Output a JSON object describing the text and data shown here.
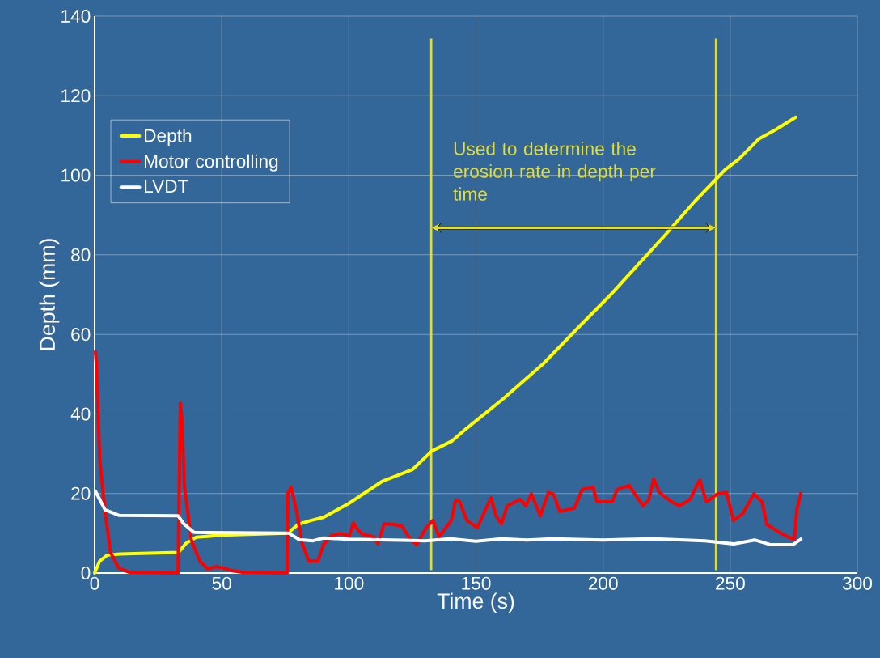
{
  "chart_data": {
    "type": "line",
    "xlabel": "Time (s)",
    "ylabel": "Depth (mm)",
    "xlim": [
      0,
      300
    ],
    "xticks": [
      0,
      50,
      100,
      150,
      200,
      250,
      300
    ],
    "ylim": [
      0,
      140
    ],
    "yticks": [
      0,
      20,
      40,
      60,
      80,
      100,
      120,
      140
    ],
    "grid": true,
    "legend": "top left",
    "marker": "none",
    "line_style": "solid",
    "series": [
      {
        "name": "Depth",
        "color": "#ffff00",
        "x": [
          0,
          2,
          5,
          10,
          33,
          36,
          40,
          50,
          76,
          80,
          85,
          90,
          100,
          113,
          125,
          132.7,
          140.6,
          146,
          160.7,
          176.6,
          189.6,
          203,
          216.4,
          224.3,
          236,
          248,
          253.3,
          261.2,
          268,
          275.8
        ],
        "values": [
          0,
          3,
          4.5,
          4.8,
          5.2,
          7.5,
          9,
          9.5,
          10,
          12.2,
          13.2,
          14,
          17.5,
          23,
          26,
          30.7,
          33.2,
          36.2,
          43.8,
          52.7,
          61.3,
          70,
          79.4,
          84.9,
          93.4,
          101.4,
          104,
          109.1,
          111.5,
          114.6
        ]
      },
      {
        "name": "Motor controlling",
        "color": "#ff0000",
        "x": [
          0.3,
          0.6,
          2,
          4.1,
          6.3,
          9.5,
          13.7,
          32.8,
          33.7,
          34.3,
          35.3,
          38,
          41.3,
          44.5,
          47.7,
          50.9,
          54,
          58,
          75.7,
          76,
          77.3,
          79.5,
          81.5,
          84.2,
          87.8,
          90,
          93.2,
          96.4,
          100.2,
          101.8,
          102.8,
          105,
          109.8,
          111.4,
          113.9,
          117.7,
          120.9,
          123.5,
          126.6,
          130.4,
          133,
          135.5,
          140.3,
          141.9,
          143.5,
          146.4,
          150.5,
          155.9,
          157.8,
          160,
          162.3,
          167.4,
          169.6,
          171.8,
          175.3,
          178.5,
          180.6,
          182.9,
          188.7,
          191.8,
          196,
          197.6,
          203.6,
          205.5,
          210.3,
          213.5,
          215.7,
          217.9,
          219.9,
          222.1,
          226.9,
          230,
          234.2,
          238,
          240.6,
          245,
          248.5,
          251.3,
          254.9,
          259.3,
          262.5,
          264.4,
          270.4,
          275.2,
          276.2,
          277.8
        ],
        "values": [
          55.6,
          53,
          28.7,
          15.3,
          5.1,
          1.2,
          0.2,
          0,
          42.7,
          39,
          22,
          8.4,
          3,
          1,
          1.6,
          1.2,
          0.6,
          0.2,
          0,
          20,
          21.6,
          15.3,
          7.7,
          3,
          3,
          7.1,
          9.4,
          9.9,
          9.4,
          12.6,
          11.5,
          9.8,
          9.1,
          7.3,
          12.4,
          12.2,
          11.8,
          9.1,
          7.1,
          11.4,
          13.2,
          9.1,
          13.2,
          18.3,
          18,
          13.2,
          11.4,
          18.9,
          14.4,
          12.4,
          16.9,
          18.5,
          16.9,
          19.9,
          14.4,
          20.3,
          19.7,
          15.5,
          16.3,
          21,
          21.6,
          17.9,
          17.9,
          21,
          22,
          18.9,
          16.9,
          18.3,
          23.6,
          20.3,
          17.9,
          16.9,
          18.5,
          23.4,
          17.9,
          19.9,
          20.3,
          13.2,
          14.9,
          19.9,
          17.9,
          12.2,
          9.8,
          8.4,
          15.9,
          20.1
        ]
      },
      {
        "name": "LVDT",
        "color": "#ffffff",
        "x": [
          0.3,
          4.1,
          9.5,
          32.8,
          35,
          39.1,
          76.4,
          80.5,
          85.9,
          90,
          100,
          130,
          140,
          150,
          160,
          170,
          180,
          200,
          220,
          240,
          251.3,
          259.6,
          266,
          274.6,
          277.8
        ],
        "values": [
          20.6,
          15.9,
          14.5,
          14.4,
          12.4,
          10.2,
          10,
          8.4,
          8.1,
          8.8,
          8.5,
          8.1,
          8.6,
          8,
          8.6,
          8.3,
          8.6,
          8.3,
          8.6,
          8.1,
          7.3,
          8.3,
          7.1,
          7.1,
          8.5
        ]
      }
    ],
    "ref_lines": [
      {
        "axis": "x",
        "value": 132.4,
        "color": "#e0dc3a"
      },
      {
        "axis": "x",
        "value": 244.4,
        "color": "#e0dc3a"
      }
    ],
    "annotations": [
      "Used to determine the erosion rate in depth per time"
    ]
  }
}
